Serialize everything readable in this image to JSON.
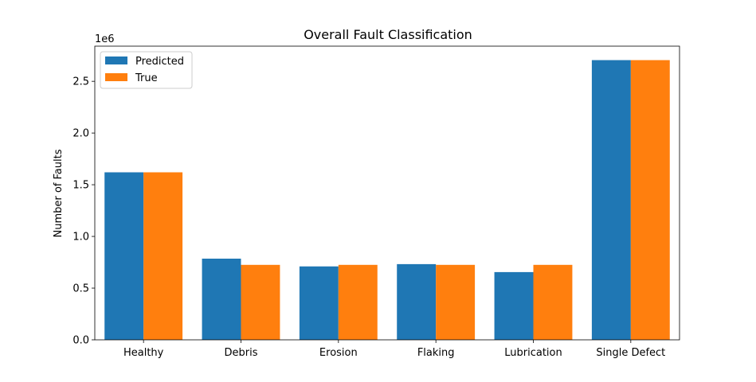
{
  "chart_data": {
    "type": "bar",
    "title": "Overall Fault Classification",
    "xlabel": "",
    "ylabel": "Number of Faults",
    "y_scale_label": "1e6",
    "categories": [
      "Healthy",
      "Debris",
      "Erosion",
      "Flaking",
      "Lubrication",
      "Single Defect"
    ],
    "series": [
      {
        "name": "Predicted",
        "color": "#1f77b4",
        "values": [
          1620000,
          785000,
          710000,
          732000,
          655000,
          2705000
        ]
      },
      {
        "name": "True",
        "color": "#ff7f0e",
        "values": [
          1620000,
          725000,
          725000,
          725000,
          725000,
          2705000
        ]
      }
    ],
    "ylim": [
      0,
      2840000
    ],
    "yticks": [
      0,
      500000,
      1000000,
      1500000,
      2000000,
      2500000
    ],
    "ytick_labels": [
      "0.0",
      "0.5",
      "1.0",
      "1.5",
      "2.0",
      "2.5"
    ],
    "legend_position": "upper-left",
    "grid": false
  }
}
